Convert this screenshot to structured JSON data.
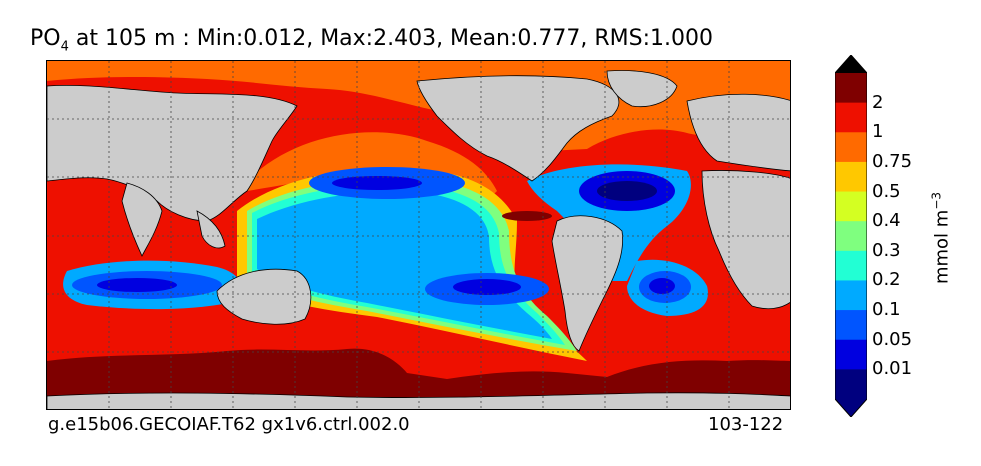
{
  "title": {
    "variable": "PO",
    "subscript": "4",
    "rest": " at 105 m : Min:0.012, Max:2.403, Mean:0.777, RMS:1.000"
  },
  "footer": {
    "case_name": "g.e15b06.GECOIAF.T62 gx1v6.ctrl.002.0",
    "years": "103-122"
  },
  "colorbar": {
    "unit_prefix": "mmol m",
    "unit_exponent": "−3",
    "tick_labels": [
      "0.01",
      "0.05",
      "0.1",
      "0.2",
      "0.3",
      "0.4",
      "0.5",
      "0.75",
      "1",
      "2"
    ],
    "colors": {
      "under": "#00007f",
      "bands": [
        "#00007f",
        "#0000e0",
        "#0055ff",
        "#00aaff",
        "#22ffd4",
        "#7fff7f",
        "#d4ff22",
        "#ffc800",
        "#ff6a00",
        "#ee1000",
        "#7f0000"
      ],
      "over": "#000000"
    }
  },
  "map": {
    "colors": {
      "land": "#cccccc",
      "sea_ice_mask": "#ffffff",
      "deep_blue": "#00007f",
      "blue": "#0055ff",
      "light_blue": "#00aaff",
      "cyan": "#22ffd4",
      "green": "#7fff7f",
      "yellow": "#ffc800",
      "orange": "#ff6a00",
      "red": "#ee1000",
      "dark_red": "#7f0000"
    },
    "gridlines": "dotted",
    "projection": "cylindrical"
  }
}
